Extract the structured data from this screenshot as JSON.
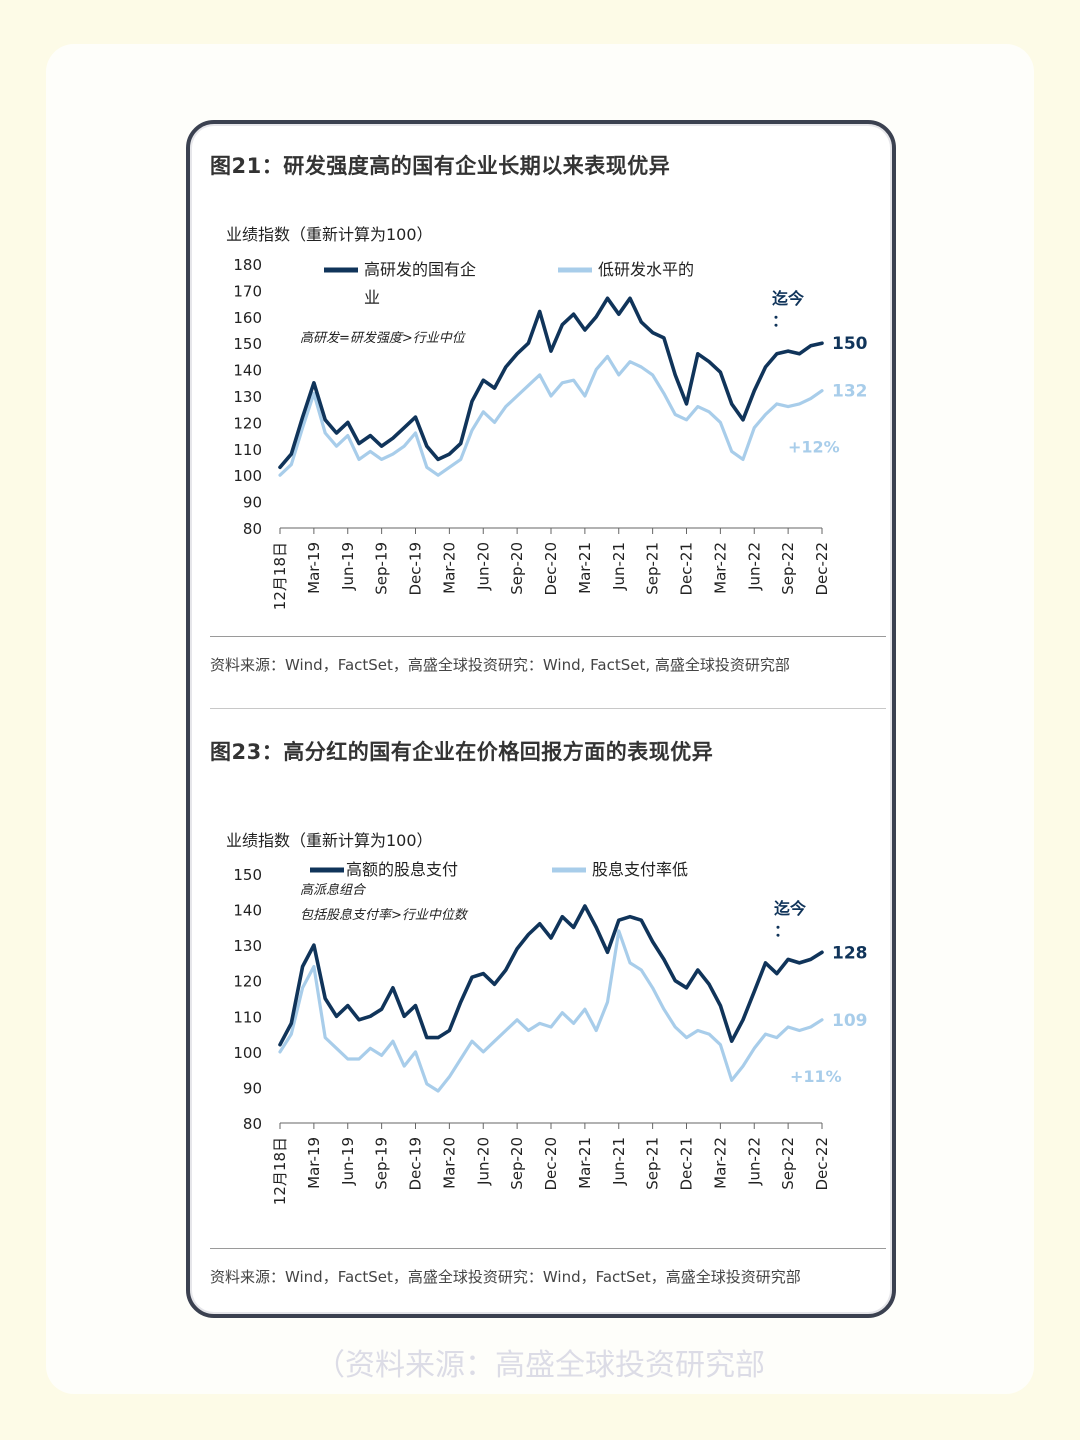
{
  "footer_caption": "（资料来源：高盛全球投资研究部",
  "colors": {
    "dark": "#10345a",
    "light": "#a8cdea",
    "frame": "#3b4150"
  },
  "figures": [
    {
      "title": "图21：研发强度高的国有企业长期以来表现优异",
      "source": "资料来源：Wind，FactSet，高盛全球投资研究：Wind, FactSet, 高盛全球投资研究部",
      "chart_data": {
        "type": "line",
        "ylabel": "业绩指数（重新计算为100）",
        "ylim": [
          80,
          180
        ],
        "yticks": [
          "180",
          "170",
          "160",
          "150",
          "140",
          "130",
          "120",
          "110",
          "100",
          "90",
          "80"
        ],
        "x_tick_labels": [
          "12月18日",
          "Mar-19",
          "Jun-19",
          "Sep-19",
          "Dec-19",
          "Mar-20",
          "Jun-20",
          "Sep-20",
          "Dec-20",
          "Mar-21",
          "Jun-21",
          "Sep-21",
          "Dec-21",
          "Mar-22",
          "Jun-22",
          "Sep-22",
          "Dec-22"
        ],
        "x": [
          0,
          1,
          2,
          3,
          4,
          5,
          6,
          7,
          8,
          9,
          10,
          11,
          12,
          13,
          14,
          15,
          16,
          17,
          18,
          19,
          20,
          21,
          22,
          23,
          24,
          25,
          26,
          27,
          28,
          29,
          30,
          31,
          32,
          33,
          34,
          35,
          36,
          37,
          38,
          39,
          40,
          41,
          42,
          43,
          44,
          45,
          46,
          47,
          48
        ],
        "series": [
          {
            "name": "高研发的国有企业",
            "color": "#10345a",
            "values": [
              103,
              108,
              122,
              135,
              121,
              116,
              120,
              112,
              115,
              111,
              114,
              118,
              122,
              111,
              106,
              108,
              112,
              128,
              136,
              133,
              141,
              146,
              150,
              162,
              147,
              157,
              161,
              155,
              160,
              167,
              161,
              167,
              158,
              154,
              152,
              138,
              127,
              146,
              143,
              139,
              127,
              121,
              132,
              141,
              146,
              147,
              146,
              149,
              150
            ]
          },
          {
            "name": "低研发水平的",
            "color": "#a8cdea",
            "values": [
              100,
              104,
              118,
              131,
              116,
              111,
              115,
              106,
              109,
              106,
              108,
              111,
              116,
              103,
              100,
              103,
              106,
              117,
              124,
              120,
              126,
              130,
              134,
              138,
              130,
              135,
              136,
              130,
              140,
              145,
              138,
              143,
              141,
              138,
              131,
              123,
              121,
              126,
              124,
              120,
              109,
              106,
              118,
              123,
              127,
              126,
              127,
              129,
              132
            ]
          }
        ],
        "legend": [
          "高研发的国有企业",
          "低研发水平的"
        ],
        "annotations": {
          "note": "高研发=研发强度>行业中位",
          "to_date": "迄今：",
          "end_dark": "150",
          "end_light": "132",
          "diff": "+12%"
        }
      }
    },
    {
      "title": "图23：高分红的国有企业在价格回报方面的表现优异",
      "source": "资料来源：Wind，FactSet，高盛全球投资研究：Wind，FactSet，高盛全球投资研究部",
      "chart_data": {
        "type": "line",
        "ylabel": "业绩指数（重新计算为100）",
        "ylim": [
          80,
          150
        ],
        "yticks": [
          "150",
          "140",
          "130",
          "120",
          "110",
          "100",
          "90",
          "80"
        ],
        "x_tick_labels": [
          "12月18日",
          "Mar-19",
          "Jun-19",
          "Sep-19",
          "Dec-19",
          "Mar-20",
          "Jun-20",
          "Sep-20",
          "Dec-20",
          "Mar-21",
          "Jun-21",
          "Sep-21",
          "Dec-21",
          "Mar-22",
          "Jun-22",
          "Sep-22",
          "Dec-22"
        ],
        "x": [
          0,
          1,
          2,
          3,
          4,
          5,
          6,
          7,
          8,
          9,
          10,
          11,
          12,
          13,
          14,
          15,
          16,
          17,
          18,
          19,
          20,
          21,
          22,
          23,
          24,
          25,
          26,
          27,
          28,
          29,
          30,
          31,
          32,
          33,
          34,
          35,
          36,
          37,
          38,
          39,
          40,
          41,
          42,
          43,
          44,
          45,
          46,
          47,
          48
        ],
        "series": [
          {
            "name": "高额的股息支付",
            "color": "#10345a",
            "values": [
              102,
              108,
              124,
              130,
              115,
              110,
              113,
              109,
              110,
              112,
              118,
              110,
              113,
              104,
              104,
              106,
              114,
              121,
              122,
              119,
              123,
              129,
              133,
              136,
              132,
              138,
              135,
              141,
              135,
              128,
              137,
              138,
              137,
              131,
              126,
              120,
              118,
              123,
              119,
              113,
              103,
              109,
              117,
              125,
              122,
              126,
              125,
              126,
              128
            ]
          },
          {
            "name": "股息支付率低",
            "color": "#a8cdea",
            "values": [
              100,
              105,
              118,
              124,
              104,
              101,
              98,
              98,
              101,
              99,
              103,
              96,
              100,
              91,
              89,
              93,
              98,
              103,
              100,
              103,
              106,
              109,
              106,
              108,
              107,
              111,
              108,
              112,
              106,
              114,
              134,
              125,
              123,
              118,
              112,
              107,
              104,
              106,
              105,
              102,
              92,
              96,
              101,
              105,
              104,
              107,
              106,
              107,
              109
            ]
          }
        ],
        "legend": [
          "高额的股息支付",
          "股息支付率低"
        ],
        "annotations": {
          "note1": "高派息组合",
          "note2": "包括股息支付率>行业中位数",
          "to_date": "迄今：",
          "end_dark": "128",
          "end_light": "109",
          "diff": "+11%"
        }
      }
    }
  ]
}
